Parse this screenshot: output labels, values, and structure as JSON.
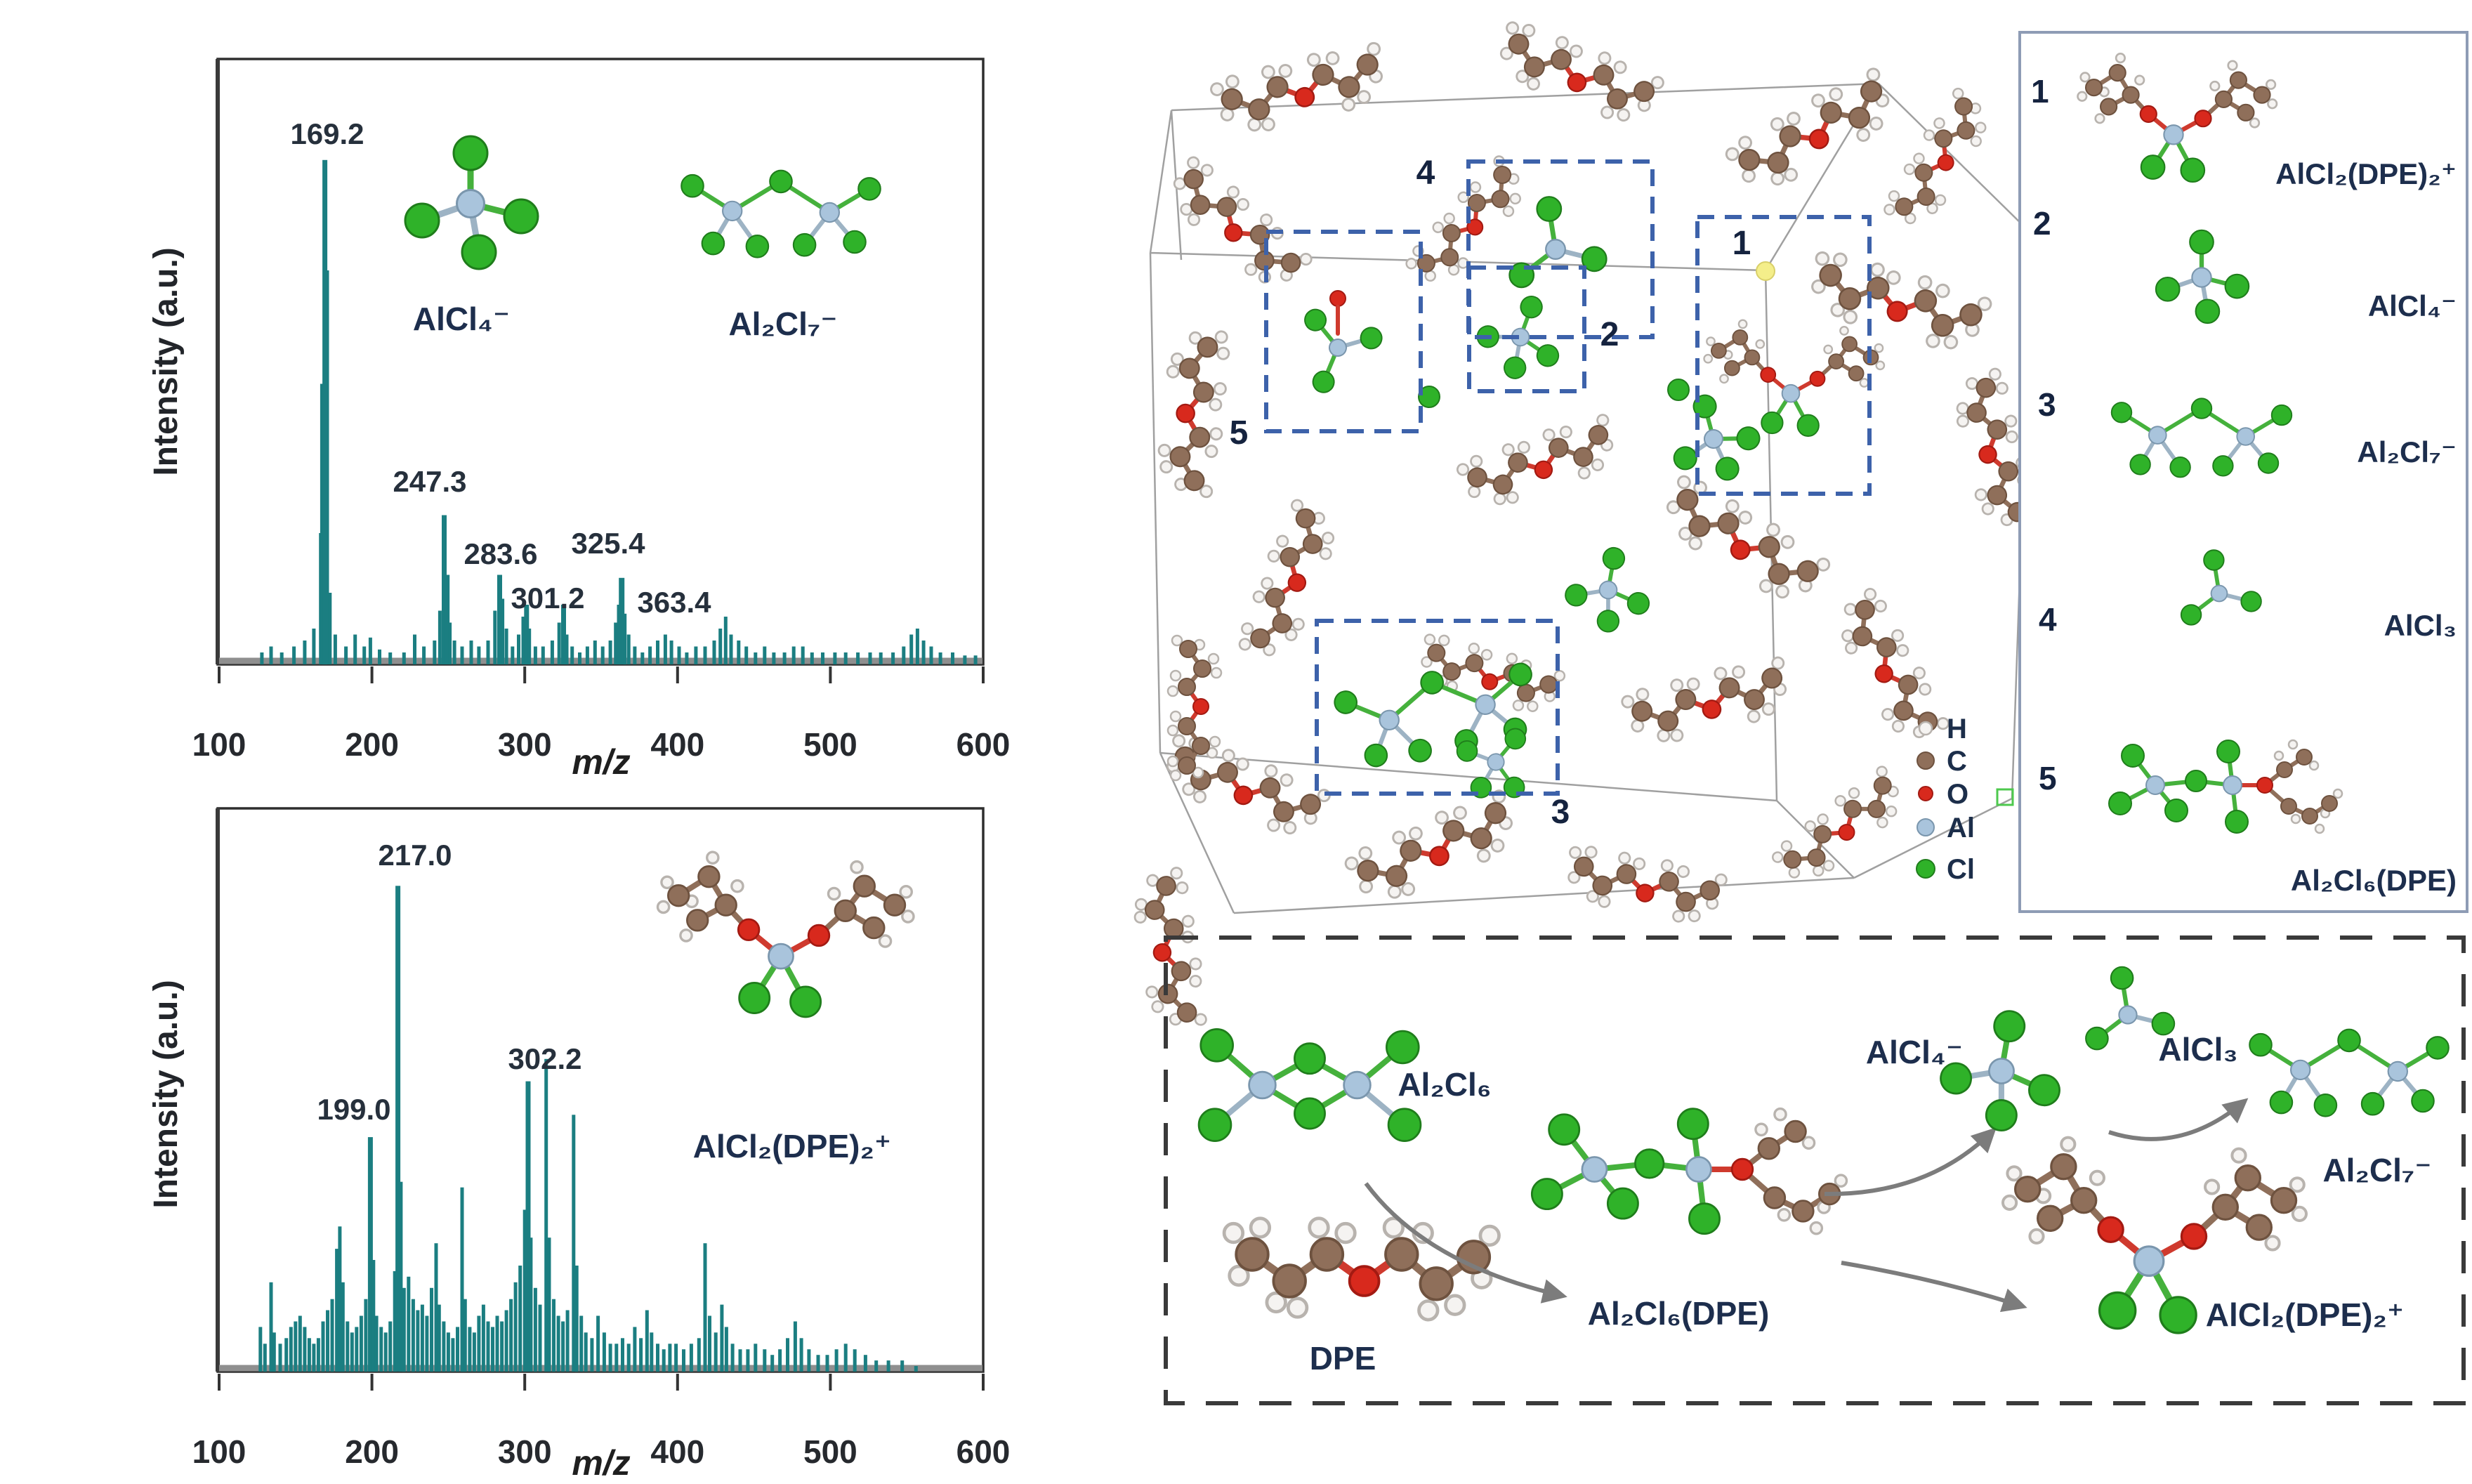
{
  "colors": {
    "teal": "#1b7e81",
    "label_dark": "#1d2e4d",
    "tick_text": "#26292e",
    "box_blue": "#3d62aa",
    "panel_border": "#8e9cb5",
    "cube_line": "#a0a0a0",
    "arrow_gray": "#7c7c7c",
    "atom_h": "#f5f3f1",
    "atom_h_edge": "#b8b3ae",
    "atom_c": "#8f6f5a",
    "atom_o": "#d8291d",
    "atom_al": "#a9c4dc",
    "atom_cl": "#2fb229",
    "highlight_yellow": "#f4ee8a"
  },
  "chart_data": [
    {
      "type": "bar",
      "title": "",
      "xlabel": "m/z",
      "ylabel": "Intensity (a.u.)",
      "xlim": [
        100,
        600
      ],
      "ylim": [
        0,
        1
      ],
      "grid": false,
      "legend_position": "none",
      "xticks": [
        100,
        200,
        300,
        400,
        500,
        600
      ],
      "inset_species": [
        "AlCl₄⁻",
        "Al₂Cl₇⁻"
      ],
      "peaks": [
        [
          128,
          0.02
        ],
        [
          134,
          0.03
        ],
        [
          141,
          0.02
        ],
        [
          149,
          0.03
        ],
        [
          156,
          0.04
        ],
        [
          162,
          0.06
        ],
        [
          166.5,
          0.22
        ],
        [
          168.2,
          0.47,
          9
        ],
        [
          169.2,
          0.845,
          7
        ],
        [
          170.3,
          0.66,
          7
        ],
        [
          172.5,
          0.12
        ],
        [
          176,
          0.05
        ],
        [
          183,
          0.03
        ],
        [
          189,
          0.05
        ],
        [
          195,
          0.03
        ],
        [
          199,
          0.045
        ],
        [
          205,
          0.025
        ],
        [
          212,
          0.02
        ],
        [
          221,
          0.02
        ],
        [
          228,
          0.05
        ],
        [
          234,
          0.03
        ],
        [
          241,
          0.04
        ],
        [
          244.5,
          0.09
        ],
        [
          247.3,
          0.25,
          7
        ],
        [
          249,
          0.15,
          8
        ],
        [
          251,
          0.07
        ],
        [
          254,
          0.04
        ],
        [
          259,
          0.03
        ],
        [
          265,
          0.04
        ],
        [
          270,
          0.03
        ],
        [
          276,
          0.04
        ],
        [
          280.5,
          0.09
        ],
        [
          283.6,
          0.15,
          7
        ],
        [
          285.5,
          0.11
        ],
        [
          288,
          0.06
        ],
        [
          292,
          0.03
        ],
        [
          296,
          0.05
        ],
        [
          299,
          0.08
        ],
        [
          301.2,
          0.1,
          7
        ],
        [
          303,
          0.06
        ],
        [
          307,
          0.03
        ],
        [
          312,
          0.03
        ],
        [
          318,
          0.04
        ],
        [
          322.5,
          0.07
        ],
        [
          325.4,
          0.1,
          7
        ],
        [
          327.5,
          0.05
        ],
        [
          331,
          0.03
        ],
        [
          336,
          0.02
        ],
        [
          341,
          0.03
        ],
        [
          346,
          0.04
        ],
        [
          351,
          0.03
        ],
        [
          356,
          0.04
        ],
        [
          359.5,
          0.07
        ],
        [
          361.5,
          0.1
        ],
        [
          363.4,
          0.145,
          8
        ],
        [
          365.5,
          0.085
        ],
        [
          368,
          0.05
        ],
        [
          372,
          0.03
        ],
        [
          377,
          0.02
        ],
        [
          382,
          0.03
        ],
        [
          387,
          0.04
        ],
        [
          392,
          0.05
        ],
        [
          396,
          0.04
        ],
        [
          401,
          0.03
        ],
        [
          406,
          0.02
        ],
        [
          412,
          0.03
        ],
        [
          418,
          0.03
        ],
        [
          424,
          0.04
        ],
        [
          428,
          0.06
        ],
        [
          431.5,
          0.08
        ],
        [
          435,
          0.05
        ],
        [
          440,
          0.04
        ],
        [
          445,
          0.03
        ],
        [
          451,
          0.02
        ],
        [
          457,
          0.03
        ],
        [
          463,
          0.02
        ],
        [
          470,
          0.02
        ],
        [
          476,
          0.03
        ],
        [
          482,
          0.03
        ],
        [
          488,
          0.02
        ],
        [
          495,
          0.02
        ],
        [
          503,
          0.02
        ],
        [
          510,
          0.02
        ],
        [
          518,
          0.02
        ],
        [
          526,
          0.02
        ],
        [
          533,
          0.02
        ],
        [
          541,
          0.02
        ],
        [
          548,
          0.03
        ],
        [
          553,
          0.05
        ],
        [
          557,
          0.06
        ],
        [
          561,
          0.04
        ],
        [
          566,
          0.03
        ],
        [
          572,
          0.02
        ],
        [
          580,
          0.02
        ],
        [
          588,
          0.015
        ],
        [
          595,
          0.015
        ]
      ],
      "annotations": [
        {
          "text": "169.2",
          "x": 466,
          "y": 205
        },
        {
          "text": "247.3",
          "x": 612,
          "y": 700
        },
        {
          "text": "283.6",
          "x": 713,
          "y": 803
        },
        {
          "text": "301.2",
          "x": 780,
          "y": 866
        },
        {
          "text": "325.4",
          "x": 866,
          "y": 788
        },
        {
          "text": "363.4",
          "x": 960,
          "y": 872
        }
      ]
    },
    {
      "type": "bar",
      "title": "",
      "xlabel": "m/z",
      "ylabel": "Intensity (a.u.)",
      "xlim": [
        100,
        600
      ],
      "ylim": [
        0,
        1
      ],
      "grid": false,
      "legend_position": "none",
      "xticks": [
        100,
        200,
        300,
        400,
        500,
        600
      ],
      "inset_species": [
        "AlCl₂(DPE)₂⁺"
      ],
      "peaks": [
        [
          127,
          0.08
        ],
        [
          130,
          0.05
        ],
        [
          134,
          0.16
        ],
        [
          136,
          0.07
        ],
        [
          140,
          0.05
        ],
        [
          144,
          0.06
        ],
        [
          147,
          0.08
        ],
        [
          150,
          0.09
        ],
        [
          153,
          0.1
        ],
        [
          156,
          0.08
        ],
        [
          159,
          0.06
        ],
        [
          162,
          0.05
        ],
        [
          165,
          0.06
        ],
        [
          168,
          0.09
        ],
        [
          171,
          0.11
        ],
        [
          174,
          0.13
        ],
        [
          177,
          0.22
        ],
        [
          179,
          0.26
        ],
        [
          181,
          0.16
        ],
        [
          184,
          0.09
        ],
        [
          187,
          0.07
        ],
        [
          190,
          0.08
        ],
        [
          193,
          0.1
        ],
        [
          196,
          0.13
        ],
        [
          199,
          0.42,
          7
        ],
        [
          201,
          0.2
        ],
        [
          203,
          0.1
        ],
        [
          206,
          0.08
        ],
        [
          209,
          0.07
        ],
        [
          212,
          0.09
        ],
        [
          215,
          0.18
        ],
        [
          217,
          0.87,
          7
        ],
        [
          219,
          0.34
        ],
        [
          221,
          0.15
        ],
        [
          224,
          0.17
        ],
        [
          227,
          0.13
        ],
        [
          230,
          0.11
        ],
        [
          233,
          0.12
        ],
        [
          236,
          0.1
        ],
        [
          239,
          0.15
        ],
        [
          242,
          0.23
        ],
        [
          244,
          0.12
        ],
        [
          247,
          0.09
        ],
        [
          250,
          0.07
        ],
        [
          253,
          0.06
        ],
        [
          256,
          0.08
        ],
        [
          259,
          0.33
        ],
        [
          261,
          0.13
        ],
        [
          264,
          0.08
        ],
        [
          267,
          0.07
        ],
        [
          270,
          0.1
        ],
        [
          273,
          0.12
        ],
        [
          276,
          0.09
        ],
        [
          279,
          0.08
        ],
        [
          282,
          0.1
        ],
        [
          285,
          0.09
        ],
        [
          288,
          0.11
        ],
        [
          291,
          0.13
        ],
        [
          294,
          0.16
        ],
        [
          297,
          0.19
        ],
        [
          300,
          0.29
        ],
        [
          302.2,
          0.52,
          7
        ],
        [
          304,
          0.24
        ],
        [
          307,
          0.15
        ],
        [
          310,
          0.12
        ],
        [
          314,
          0.56
        ],
        [
          316,
          0.24
        ],
        [
          319,
          0.13
        ],
        [
          322,
          0.1
        ],
        [
          325,
          0.09
        ],
        [
          328,
          0.11
        ],
        [
          332,
          0.46
        ],
        [
          334,
          0.19
        ],
        [
          337,
          0.1
        ],
        [
          340,
          0.07
        ],
        [
          344,
          0.06
        ],
        [
          348,
          0.1
        ],
        [
          352,
          0.07
        ],
        [
          356,
          0.05
        ],
        [
          360,
          0.05
        ],
        [
          364,
          0.06
        ],
        [
          368,
          0.05
        ],
        [
          372,
          0.08
        ],
        [
          376,
          0.06
        ],
        [
          380,
          0.11
        ],
        [
          383,
          0.07
        ],
        [
          387,
          0.05
        ],
        [
          391,
          0.04
        ],
        [
          395,
          0.05
        ],
        [
          399,
          0.05
        ],
        [
          404,
          0.04
        ],
        [
          409,
          0.05
        ],
        [
          414,
          0.06
        ],
        [
          418,
          0.23
        ],
        [
          421,
          0.1
        ],
        [
          425,
          0.07
        ],
        [
          429,
          0.12
        ],
        [
          432,
          0.08
        ],
        [
          436,
          0.05
        ],
        [
          441,
          0.04
        ],
        [
          446,
          0.04
        ],
        [
          451,
          0.05
        ],
        [
          457,
          0.04
        ],
        [
          462,
          0.03
        ],
        [
          467,
          0.04
        ],
        [
          472,
          0.06
        ],
        [
          477,
          0.09
        ],
        [
          481,
          0.06
        ],
        [
          486,
          0.04
        ],
        [
          492,
          0.03
        ],
        [
          498,
          0.03
        ],
        [
          504,
          0.04
        ],
        [
          510,
          0.05
        ],
        [
          516,
          0.04
        ],
        [
          523,
          0.03
        ],
        [
          530,
          0.02
        ],
        [
          538,
          0.02
        ],
        [
          547,
          0.02
        ],
        [
          556,
          0.01
        ]
      ],
      "annotations": [
        {
          "text": "217.0",
          "x": 591,
          "y": 1232
        },
        {
          "text": "199.0",
          "x": 504,
          "y": 1594
        },
        {
          "text": "302.2",
          "x": 776,
          "y": 1522
        }
      ]
    }
  ],
  "simulation": {
    "region_numbers": [
      {
        "n": "1"
      },
      {
        "n": "2"
      },
      {
        "n": "3"
      },
      {
        "n": "4"
      },
      {
        "n": "5"
      }
    ],
    "legend": [
      {
        "symbol": "H",
        "color": "#f5f3f1"
      },
      {
        "symbol": "C",
        "color": "#8f6f5a"
      },
      {
        "symbol": "O",
        "color": "#d8291d"
      },
      {
        "symbol": "Al",
        "color": "#a9c4dc"
      },
      {
        "symbol": "Cl",
        "color": "#2fb229"
      }
    ]
  },
  "species_panel": {
    "items": [
      {
        "number": "1",
        "formula": "AlCl₂(DPE)₂⁺"
      },
      {
        "number": "2",
        "formula": "AlCl₄⁻"
      },
      {
        "number": "3",
        "formula": "Al₂Cl₇⁻"
      },
      {
        "number": "4",
        "formula": "AlCl₃"
      },
      {
        "number": "5",
        "formula": "Al₂Cl₆(DPE)"
      }
    ]
  },
  "reaction_scheme": {
    "labels": {
      "al2cl6": "Al₂Cl₆",
      "dpe": "DPE",
      "al2cl6dpe": "Al₂Cl₆(DPE)",
      "alcl4": "AlCl₄⁻",
      "alcl3": "AlCl₃",
      "al2cl7": "Al₂Cl₇⁻",
      "alcl2dpe2": "AlCl₂(DPE)₂⁺"
    }
  }
}
